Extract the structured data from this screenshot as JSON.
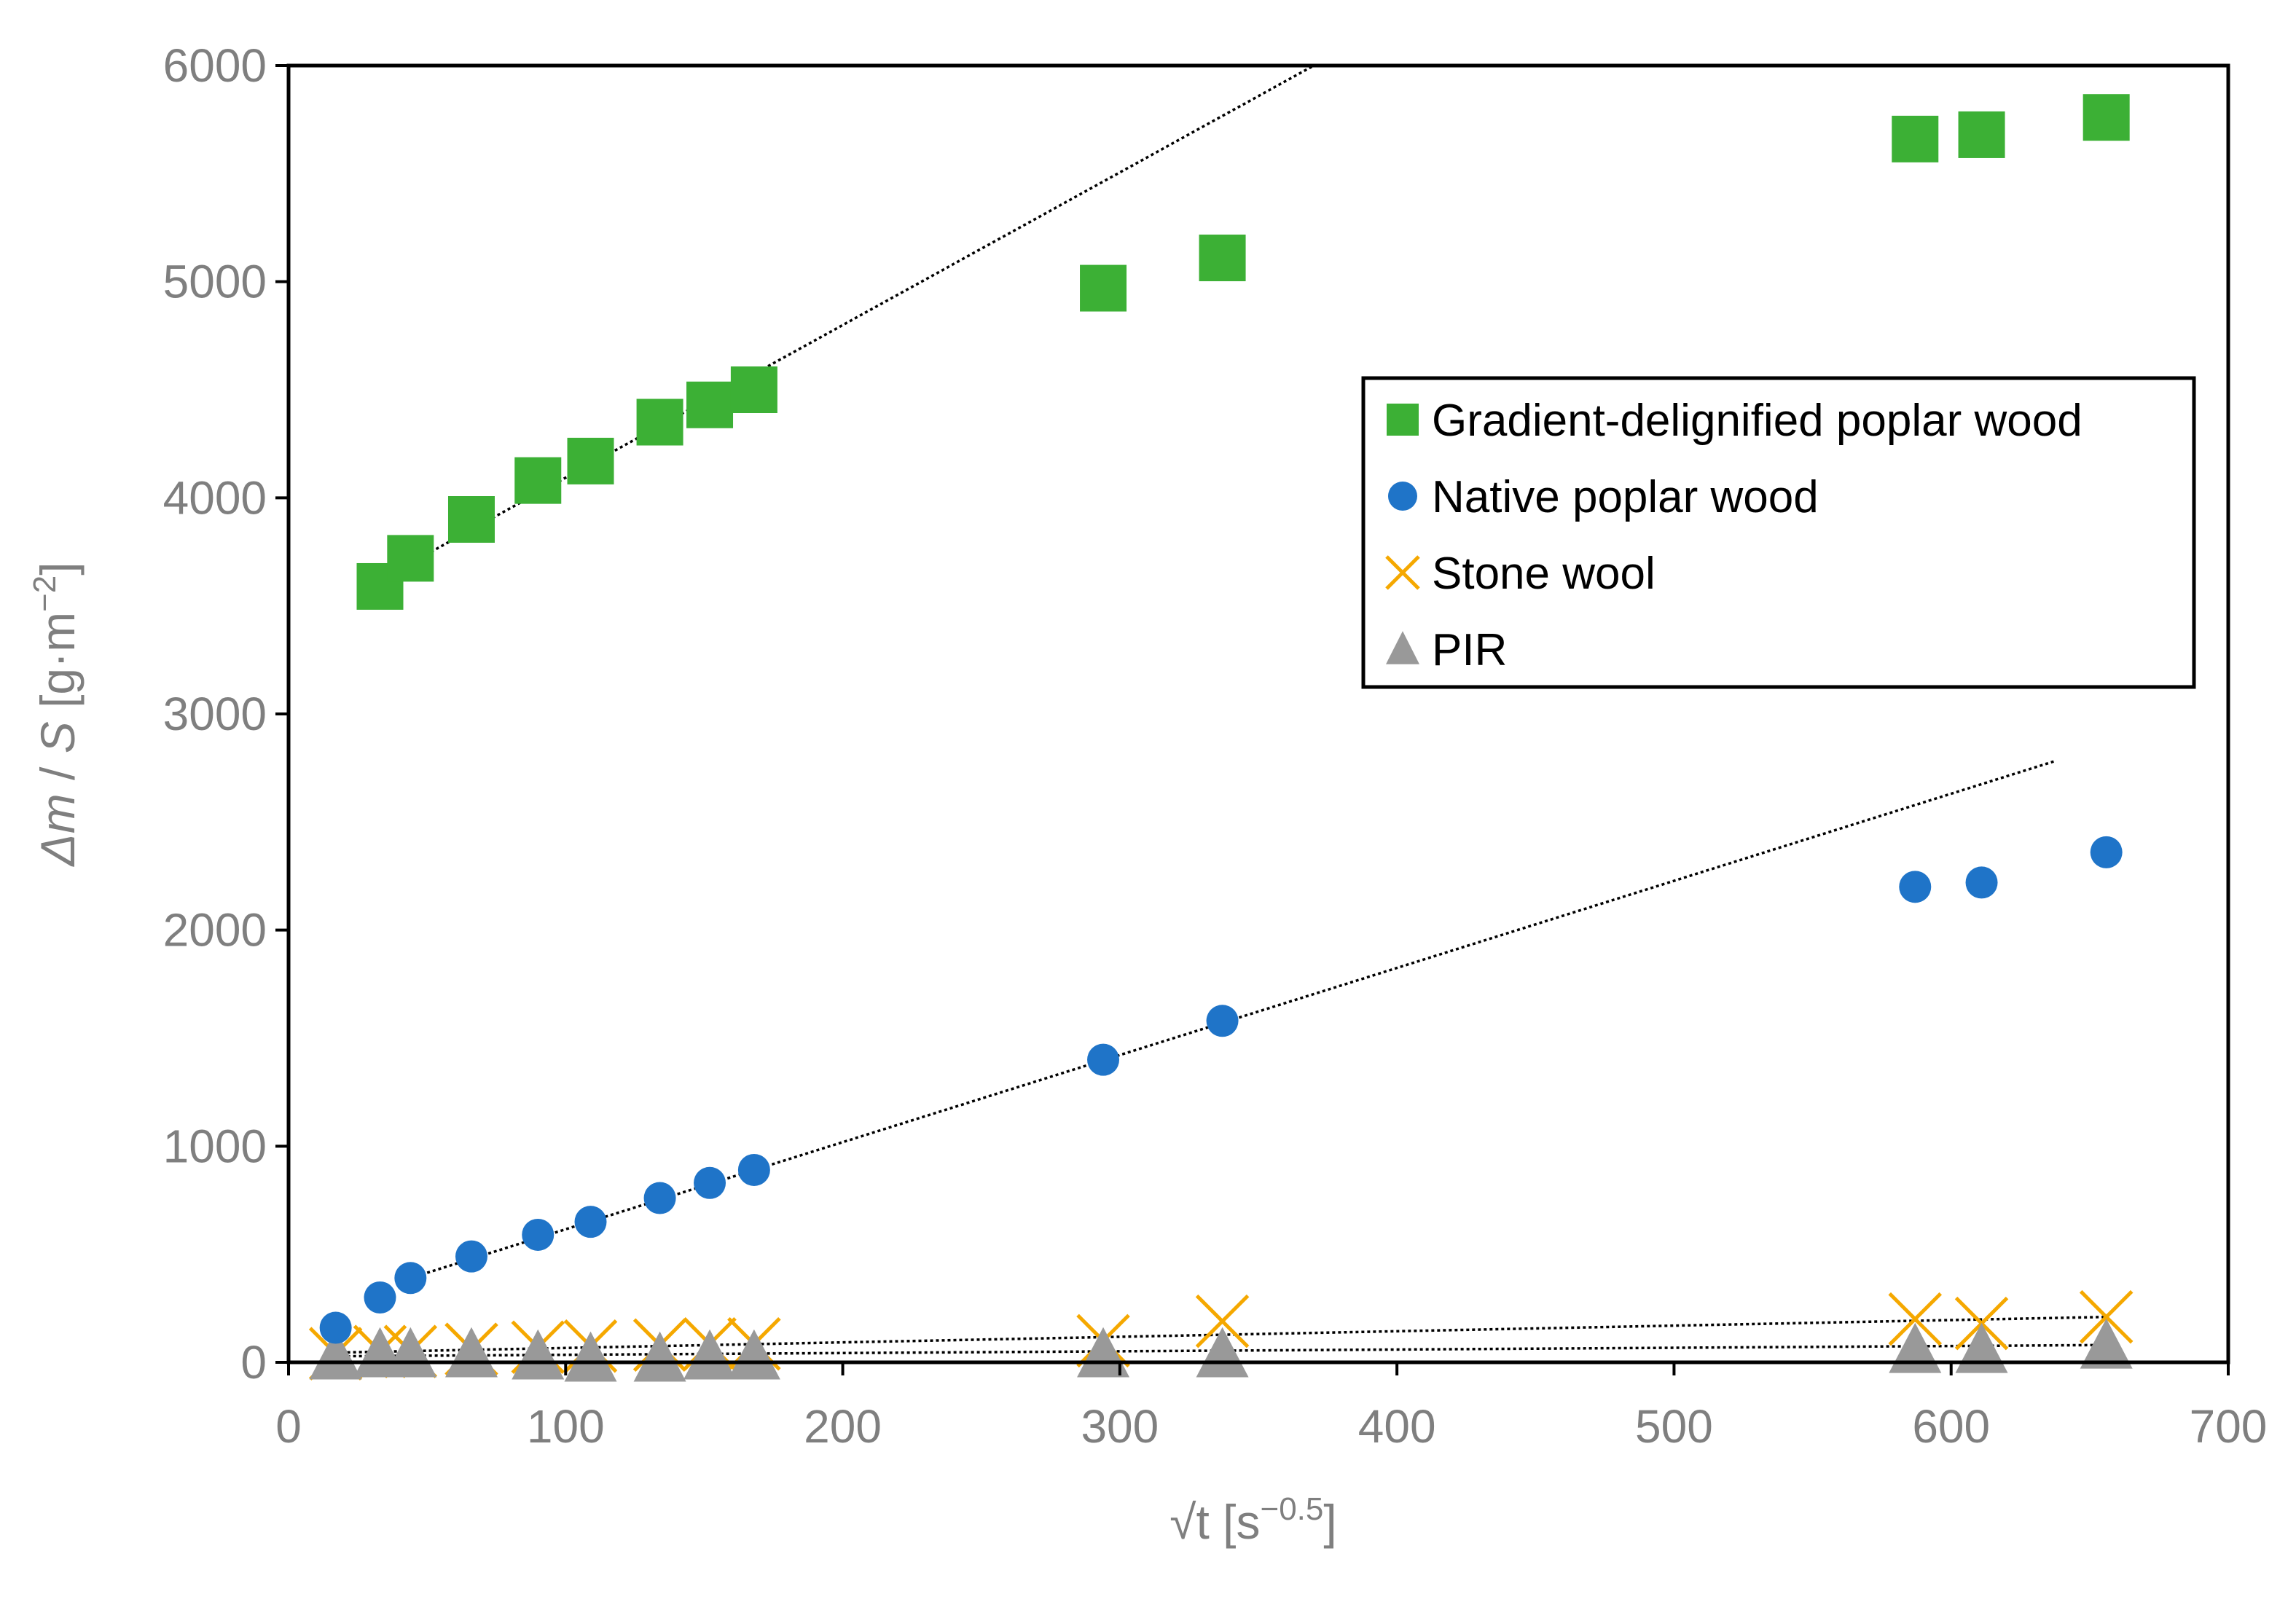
{
  "chart_data": {
    "type": "scatter",
    "xlabel": "√t [s",
    "xlabel_sup": "−0.5",
    "xlabel_end": "]",
    "ylabel_delta": "Δ",
    "ylabel_m": "m",
    "ylabel_mid": " / ",
    "ylabel_s": "S",
    "ylabel_unit": " [g·m",
    "ylabel_sup": "−2",
    "ylabel_end": "]",
    "xlim": [
      0,
      700
    ],
    "ylim": [
      0,
      6000
    ],
    "xticks": [
      0,
      100,
      200,
      300,
      400,
      500,
      600,
      700
    ],
    "yticks": [
      0,
      1000,
      2000,
      3000,
      4000,
      5000,
      6000
    ],
    "grid": false,
    "legend_position": "upper-right",
    "series": [
      {
        "name": "Gradient-delignified poplar wood",
        "marker": "square",
        "color": "#3cb035",
        "x": [
          33,
          44,
          66,
          90,
          109,
          134,
          152,
          168,
          294,
          337,
          587,
          611,
          656
        ],
        "y": [
          3590,
          3720,
          3900,
          4080,
          4170,
          4350,
          4430,
          4500,
          4970,
          5110,
          5660,
          5680,
          5760
        ]
      },
      {
        "name": "Native poplar wood",
        "marker": "circle",
        "color": "#1f74c8",
        "x": [
          17,
          33,
          44,
          66,
          90,
          109,
          134,
          152,
          168,
          294,
          337,
          587,
          611,
          656
        ],
        "y": [
          160,
          300,
          390,
          490,
          590,
          650,
          760,
          830,
          890,
          1400,
          1580,
          2200,
          2220,
          2360
        ]
      },
      {
        "name": "Stone wool",
        "marker": "x",
        "color": "#f5a800",
        "x": [
          17,
          33,
          44,
          66,
          90,
          109,
          134,
          152,
          168,
          294,
          337,
          587,
          611,
          656
        ],
        "y": [
          40,
          50,
          50,
          60,
          70,
          75,
          80,
          85,
          85,
          100,
          190,
          200,
          180,
          210
        ]
      },
      {
        "name": "PIR",
        "marker": "triangle",
        "color": "#999999",
        "x": [
          17,
          33,
          44,
          66,
          90,
          109,
          134,
          152,
          168,
          294,
          337,
          587,
          611,
          656
        ],
        "y": [
          30,
          40,
          40,
          40,
          30,
          20,
          20,
          30,
          30,
          40,
          40,
          60,
          60,
          80
        ]
      }
    ],
    "trendlines": [
      {
        "series": "Gradient-delignified poplar wood",
        "x": [
          33,
          370
        ],
        "y": [
          3620,
          6000
        ]
      },
      {
        "series": "Native poplar wood",
        "x": [
          44,
          637
        ],
        "y": [
          390,
          2780
        ]
      },
      {
        "series": "Stone wool",
        "x": [
          17,
          656
        ],
        "y": [
          45,
          210
        ]
      },
      {
        "series": "PIR",
        "x": [
          17,
          656
        ],
        "y": [
          28,
          80
        ]
      }
    ]
  }
}
